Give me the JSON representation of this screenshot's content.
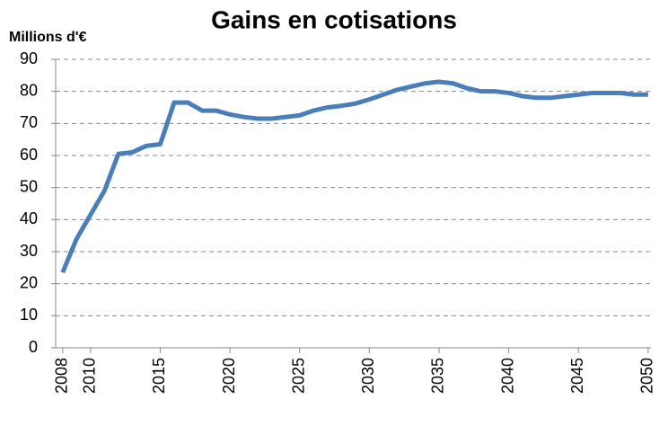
{
  "chart_data": {
    "type": "line",
    "title": "Gains en cotisations",
    "y_label": "Millions d'€",
    "x": [
      2008,
      2009,
      2010,
      2011,
      2012,
      2013,
      2014,
      2015,
      2016,
      2017,
      2018,
      2019,
      2020,
      2021,
      2022,
      2023,
      2024,
      2025,
      2026,
      2027,
      2028,
      2029,
      2030,
      2031,
      2032,
      2033,
      2034,
      2035,
      2036,
      2037,
      2038,
      2039,
      2040,
      2041,
      2042,
      2043,
      2044,
      2045,
      2046,
      2047,
      2048,
      2049,
      2050
    ],
    "series": [
      {
        "name": "Gains en cotisations",
        "color": "#4a7ebb",
        "values": [
          23.5,
          34,
          41.5,
          49,
          60.5,
          61,
          63,
          63.5,
          76.5,
          76.5,
          74,
          74,
          72.8,
          72,
          71.5,
          71.5,
          72,
          72.5,
          74,
          75,
          75.5,
          76.2,
          77.5,
          79,
          80.5,
          81.5,
          82.5,
          83,
          82.5,
          81,
          80,
          80,
          79.5,
          78.5,
          78,
          78,
          78.5,
          79,
          79.5,
          79.5,
          79.5,
          79,
          79
        ]
      }
    ],
    "xlim": [
      2007.5,
      2050.2
    ],
    "xticks": [
      2008,
      2010,
      2015,
      2020,
      2025,
      2030,
      2035,
      2040,
      2045,
      2050
    ],
    "ylim": [
      0,
      90
    ],
    "yticks": [
      0,
      10,
      20,
      30,
      40,
      50,
      60,
      70,
      80,
      90
    ],
    "grid": true
  }
}
